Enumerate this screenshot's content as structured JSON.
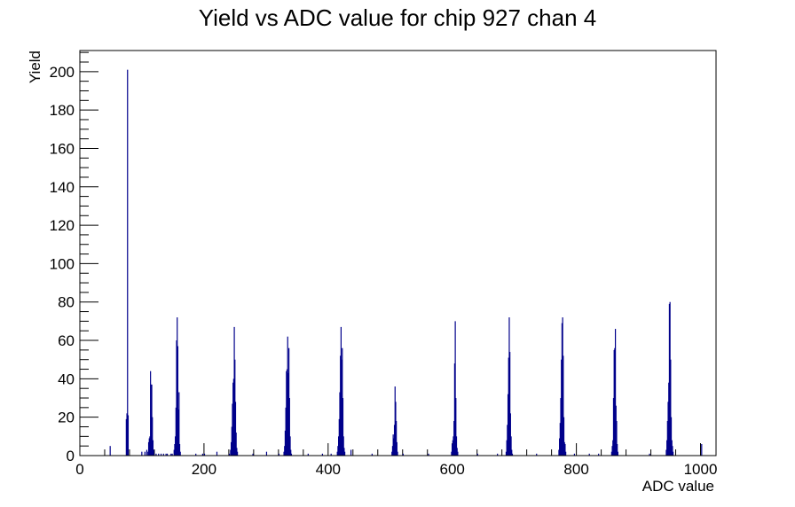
{
  "chart_data": {
    "type": "bar",
    "title": "Yield vs ADC value for chip 927 chan 4",
    "xlabel": "ADC value",
    "ylabel": "Yield",
    "xlim": [
      0,
      1025
    ],
    "ylim": [
      0,
      211
    ],
    "x_ticks": [
      0,
      200,
      400,
      600,
      800,
      1000
    ],
    "y_ticks": [
      0,
      20,
      40,
      60,
      80,
      100,
      120,
      140,
      160,
      180,
      200
    ],
    "grid": false,
    "legend": "none",
    "line_color": "#00008b",
    "series": [
      {
        "bin_width": 1,
        "points": [
          [
            48,
            5
          ],
          [
            74,
            19
          ],
          [
            75,
            22
          ],
          [
            76,
            201
          ],
          [
            77,
            21
          ],
          [
            99,
            2
          ],
          [
            104,
            2
          ],
          [
            107,
            3
          ],
          [
            109,
            2
          ],
          [
            110,
            7
          ],
          [
            111,
            9
          ],
          [
            112,
            10
          ],
          [
            113,
            44
          ],
          [
            114,
            37
          ],
          [
            115,
            37
          ],
          [
            116,
            20
          ],
          [
            117,
            8
          ],
          [
            118,
            3
          ],
          [
            122,
            1
          ],
          [
            126,
            1
          ],
          [
            130,
            1
          ],
          [
            134,
            1
          ],
          [
            138,
            1
          ],
          [
            140,
            1
          ],
          [
            146,
            1
          ],
          [
            148,
            1
          ],
          [
            151,
            3
          ],
          [
            152,
            6
          ],
          [
            153,
            10
          ],
          [
            154,
            25
          ],
          [
            155,
            60
          ],
          [
            156,
            72
          ],
          [
            157,
            57
          ],
          [
            158,
            24
          ],
          [
            159,
            33
          ],
          [
            160,
            6
          ],
          [
            161,
            2
          ],
          [
            186,
            1
          ],
          [
            197,
            1
          ],
          [
            200,
            1
          ],
          [
            220,
            2
          ],
          [
            240,
            1
          ],
          [
            242,
            3
          ],
          [
            243,
            7
          ],
          [
            244,
            15
          ],
          [
            245,
            27
          ],
          [
            246,
            38
          ],
          [
            247,
            40
          ],
          [
            248,
            67
          ],
          [
            249,
            50
          ],
          [
            250,
            28
          ],
          [
            251,
            12
          ],
          [
            252,
            4
          ],
          [
            253,
            2
          ],
          [
            278,
            1
          ],
          [
            300,
            2
          ],
          [
            320,
            1
          ],
          [
            328,
            2
          ],
          [
            329,
            5
          ],
          [
            330,
            13
          ],
          [
            331,
            25
          ],
          [
            332,
            44
          ],
          [
            333,
            45
          ],
          [
            334,
            62
          ],
          [
            335,
            43
          ],
          [
            336,
            56
          ],
          [
            337,
            30
          ],
          [
            338,
            10
          ],
          [
            339,
            3
          ],
          [
            340,
            1
          ],
          [
            367,
            1
          ],
          [
            390,
            1
          ],
          [
            404,
            1
          ],
          [
            414,
            2
          ],
          [
            415,
            5
          ],
          [
            416,
            10
          ],
          [
            417,
            19
          ],
          [
            418,
            33
          ],
          [
            419,
            52
          ],
          [
            420,
            67
          ],
          [
            421,
            50
          ],
          [
            422,
            56
          ],
          [
            423,
            30
          ],
          [
            424,
            10
          ],
          [
            425,
            4
          ],
          [
            426,
            2
          ],
          [
            436,
            3
          ],
          [
            470,
            1
          ],
          [
            502,
            2
          ],
          [
            503,
            5
          ],
          [
            504,
            11
          ],
          [
            505,
            9
          ],
          [
            506,
            16
          ],
          [
            507,
            36
          ],
          [
            508,
            28
          ],
          [
            509,
            18
          ],
          [
            510,
            7
          ],
          [
            511,
            2
          ],
          [
            520,
            1
          ],
          [
            561,
            1
          ],
          [
            598,
            2
          ],
          [
            599,
            6
          ],
          [
            600,
            8
          ],
          [
            601,
            10
          ],
          [
            602,
            18
          ],
          [
            603,
            48
          ],
          [
            604,
            70
          ],
          [
            605,
            30
          ],
          [
            606,
            10
          ],
          [
            607,
            4
          ],
          [
            608,
            2
          ],
          [
            640,
            1
          ],
          [
            672,
            1
          ],
          [
            686,
            2
          ],
          [
            687,
            8
          ],
          [
            688,
            16
          ],
          [
            689,
            32
          ],
          [
            690,
            51
          ],
          [
            691,
            72
          ],
          [
            692,
            54
          ],
          [
            693,
            22
          ],
          [
            694,
            10
          ],
          [
            695,
            3
          ],
          [
            696,
            1
          ],
          [
            735,
            1
          ],
          [
            771,
            3
          ],
          [
            772,
            9
          ],
          [
            773,
            17
          ],
          [
            774,
            30
          ],
          [
            775,
            50
          ],
          [
            776,
            69
          ],
          [
            777,
            72
          ],
          [
            778,
            52
          ],
          [
            779,
            20
          ],
          [
            780,
            7
          ],
          [
            781,
            6
          ],
          [
            782,
            2
          ],
          [
            796,
            1
          ],
          [
            820,
            1
          ],
          [
            835,
            1
          ],
          [
            856,
            2
          ],
          [
            857,
            5
          ],
          [
            858,
            8
          ],
          [
            859,
            30
          ],
          [
            860,
            55
          ],
          [
            861,
            56
          ],
          [
            862,
            66
          ],
          [
            863,
            26
          ],
          [
            864,
            18
          ],
          [
            865,
            6
          ],
          [
            866,
            2
          ],
          [
            917,
            1
          ],
          [
            944,
            3
          ],
          [
            945,
            8
          ],
          [
            946,
            18
          ],
          [
            947,
            28
          ],
          [
            948,
            38
          ],
          [
            949,
            79
          ],
          [
            950,
            80
          ],
          [
            951,
            50
          ],
          [
            952,
            20
          ],
          [
            953,
            8
          ],
          [
            954,
            5
          ],
          [
            955,
            2
          ],
          [
            1001,
            6
          ]
        ]
      }
    ]
  }
}
